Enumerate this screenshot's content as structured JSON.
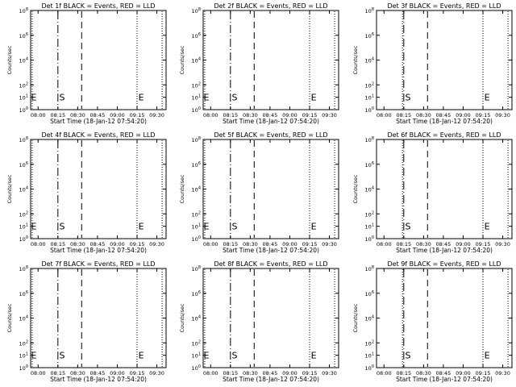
{
  "page": {
    "background": "#ffffff",
    "foreground": "#000000"
  },
  "chart_data": [
    {
      "type": "line",
      "detector": "Det 1f",
      "title": "Det 1f BLACK = Events, RED = LLD",
      "xlabel": "Start Time (18-Jan-12 07:54:20)",
      "ylabel": "Counts/sec",
      "x_tick_labels": [
        "08:00",
        "08:15",
        "08:30",
        "08:45",
        "09:00",
        "09:15",
        "09:30"
      ],
      "xlim": [
        "07:54:20",
        "09:37:00"
      ],
      "y_scale": "log",
      "ylim": [
        1,
        100000000
      ],
      "y_tick_labels": [
        {
          "base": "10",
          "exp": "8"
        },
        {
          "base": "10",
          "exp": "6"
        },
        {
          "base": "10",
          "exp": "4"
        },
        {
          "base": "10",
          "exp": "2"
        },
        {
          "base": "10",
          "exp": "1"
        },
        {
          "base": "10",
          "exp": "0"
        }
      ],
      "y_tick_values": [
        100000000,
        1000000,
        10000,
        100,
        10,
        1
      ],
      "series": [],
      "vertical_lines": [
        {
          "time": "07:55:30",
          "style": "dotted"
        },
        {
          "time": "08:15:00",
          "style": "dashdot"
        },
        {
          "time": "08:33:00",
          "style": "dashed"
        },
        {
          "time": "09:15:00",
          "style": "dotted"
        },
        {
          "time": "09:34:00",
          "style": "dotted"
        }
      ],
      "markers": [
        {
          "label": "E",
          "time": "07:54:40"
        },
        {
          "label": "S",
          "time": "08:16:00"
        },
        {
          "label": "E",
          "time": "09:16:00"
        }
      ],
      "grid": false
    },
    {
      "type": "line",
      "detector": "Det 2f",
      "title": "Det 2f BLACK = Events, RED = LLD",
      "xlabel": "Start Time (18-Jan-12 07:54:20)",
      "ylabel": "Counts/sec",
      "x_tick_labels": [
        "08:00",
        "08:15",
        "08:30",
        "08:45",
        "09:00",
        "09:15",
        "09:30"
      ],
      "xlim": [
        "07:54:20",
        "09:37:00"
      ],
      "y_scale": "log",
      "ylim": [
        1,
        100000000
      ],
      "y_tick_labels": [
        {
          "base": "10",
          "exp": "8"
        },
        {
          "base": "10",
          "exp": "6"
        },
        {
          "base": "10",
          "exp": "4"
        },
        {
          "base": "10",
          "exp": "2"
        },
        {
          "base": "10",
          "exp": "1"
        },
        {
          "base": "10",
          "exp": "0"
        }
      ],
      "y_tick_values": [
        100000000,
        1000000,
        10000,
        100,
        10,
        1
      ],
      "series": [],
      "vertical_lines": [
        {
          "time": "07:55:30",
          "style": "dotted"
        },
        {
          "time": "08:15:00",
          "style": "dashdot"
        },
        {
          "time": "08:33:00",
          "style": "dashed"
        },
        {
          "time": "09:15:00",
          "style": "dotted"
        },
        {
          "time": "09:34:00",
          "style": "dotted"
        }
      ],
      "markers": [
        {
          "label": "E",
          "time": "07:54:40"
        },
        {
          "label": "S",
          "time": "08:16:00"
        },
        {
          "label": "E",
          "time": "09:16:00"
        }
      ],
      "grid": false
    },
    {
      "type": "line",
      "detector": "Det 3f",
      "title": "Det 3f BLACK = Events, RED = LLD",
      "xlabel": "Start Time (18-Jan-12 07:54:20)",
      "ylabel": "Counts/sec",
      "x_tick_labels": [
        "08:00",
        "08:15",
        "08:30",
        "08:45",
        "09:00",
        "09:15",
        "09:30"
      ],
      "xlim": [
        "07:54:20",
        "09:37:00"
      ],
      "y_scale": "log",
      "ylim": [
        1,
        100000000
      ],
      "y_tick_labels": [
        {
          "base": "10",
          "exp": "8"
        },
        {
          "base": "10",
          "exp": "6"
        },
        {
          "base": "10",
          "exp": "4"
        },
        {
          "base": "10",
          "exp": "2"
        },
        {
          "base": "10",
          "exp": "1"
        },
        {
          "base": "10",
          "exp": "0"
        }
      ],
      "y_tick_values": [
        100000000,
        1000000,
        10000,
        100,
        10,
        1
      ],
      "series": [],
      "vertical_lines": [
        {
          "time": "08:14:00",
          "style": "dotted"
        },
        {
          "time": "08:15:00",
          "style": "dashdot"
        },
        {
          "time": "08:33:00",
          "style": "dashed"
        },
        {
          "time": "09:15:00",
          "style": "dotted"
        },
        {
          "time": "09:34:00",
          "style": "dotted"
        }
      ],
      "markers": [
        {
          "label": "S",
          "time": "08:16:00"
        },
        {
          "label": "E",
          "time": "09:16:00"
        }
      ],
      "grid": false
    },
    {
      "type": "line",
      "detector": "Det 4f",
      "title": "Det 4f BLACK = Events, RED = LLD",
      "xlabel": "Start Time (18-Jan-12 07:54:20)",
      "ylabel": "Counts/sec",
      "x_tick_labels": [
        "08:00",
        "08:15",
        "08:30",
        "08:45",
        "09:00",
        "09:15",
        "09:30"
      ],
      "xlim": [
        "07:54:20",
        "09:37:00"
      ],
      "y_scale": "log",
      "ylim": [
        1,
        100000000
      ],
      "y_tick_labels": [
        {
          "base": "10",
          "exp": "8"
        },
        {
          "base": "10",
          "exp": "6"
        },
        {
          "base": "10",
          "exp": "4"
        },
        {
          "base": "10",
          "exp": "2"
        },
        {
          "base": "10",
          "exp": "1"
        },
        {
          "base": "10",
          "exp": "0"
        }
      ],
      "y_tick_values": [
        100000000,
        1000000,
        10000,
        100,
        10,
        1
      ],
      "series": [],
      "vertical_lines": [
        {
          "time": "07:55:30",
          "style": "dotted"
        },
        {
          "time": "08:15:00",
          "style": "dashdot"
        },
        {
          "time": "08:33:00",
          "style": "dashed"
        },
        {
          "time": "09:15:00",
          "style": "dotted"
        },
        {
          "time": "09:34:00",
          "style": "dotted"
        }
      ],
      "markers": [
        {
          "label": "E",
          "time": "07:54:40"
        },
        {
          "label": "S",
          "time": "08:16:00"
        },
        {
          "label": "E",
          "time": "09:16:00"
        }
      ],
      "grid": false
    },
    {
      "type": "line",
      "detector": "Det 5f",
      "title": "Det 5f BLACK = Events, RED = LLD",
      "xlabel": "Start Time (18-Jan-12 07:54:20)",
      "ylabel": "Counts/sec",
      "x_tick_labels": [
        "08:00",
        "08:15",
        "08:30",
        "08:45",
        "09:00",
        "09:15",
        "09:30"
      ],
      "xlim": [
        "07:54:20",
        "09:37:00"
      ],
      "y_scale": "log",
      "ylim": [
        1,
        100000000
      ],
      "y_tick_labels": [
        {
          "base": "10",
          "exp": "8"
        },
        {
          "base": "10",
          "exp": "6"
        },
        {
          "base": "10",
          "exp": "4"
        },
        {
          "base": "10",
          "exp": "2"
        },
        {
          "base": "10",
          "exp": "1"
        },
        {
          "base": "10",
          "exp": "0"
        }
      ],
      "y_tick_values": [
        100000000,
        1000000,
        10000,
        100,
        10,
        1
      ],
      "series": [],
      "vertical_lines": [
        {
          "time": "07:55:30",
          "style": "dotted"
        },
        {
          "time": "08:15:00",
          "style": "dashdot"
        },
        {
          "time": "08:33:00",
          "style": "dashed"
        },
        {
          "time": "09:15:00",
          "style": "dotted"
        },
        {
          "time": "09:34:00",
          "style": "dotted"
        }
      ],
      "markers": [
        {
          "label": "E",
          "time": "07:54:40"
        },
        {
          "label": "S",
          "time": "08:16:00"
        },
        {
          "label": "E",
          "time": "09:16:00"
        }
      ],
      "grid": false
    },
    {
      "type": "line",
      "detector": "Det 6f",
      "title": "Det 6f BLACK = Events, RED = LLD",
      "xlabel": "Start Time (18-Jan-12 07:54:20)",
      "ylabel": "Counts/sec",
      "x_tick_labels": [
        "08:00",
        "08:15",
        "08:30",
        "08:45",
        "09:00",
        "09:15",
        "09:30"
      ],
      "xlim": [
        "07:54:20",
        "09:37:00"
      ],
      "y_scale": "log",
      "ylim": [
        1,
        100000000
      ],
      "y_tick_labels": [
        {
          "base": "10",
          "exp": "8"
        },
        {
          "base": "10",
          "exp": "6"
        },
        {
          "base": "10",
          "exp": "4"
        },
        {
          "base": "10",
          "exp": "2"
        },
        {
          "base": "10",
          "exp": "1"
        },
        {
          "base": "10",
          "exp": "0"
        }
      ],
      "y_tick_values": [
        100000000,
        1000000,
        10000,
        100,
        10,
        1
      ],
      "series": [],
      "vertical_lines": [
        {
          "time": "08:14:00",
          "style": "dotted"
        },
        {
          "time": "08:15:00",
          "style": "dashdot"
        },
        {
          "time": "08:33:00",
          "style": "dashed"
        },
        {
          "time": "09:15:00",
          "style": "dotted"
        },
        {
          "time": "09:34:00",
          "style": "dotted"
        }
      ],
      "markers": [
        {
          "label": "S",
          "time": "08:16:00"
        },
        {
          "label": "E",
          "time": "09:16:00"
        }
      ],
      "grid": false
    },
    {
      "type": "line",
      "detector": "Det 7f",
      "title": "Det 7f BLACK = Events, RED = LLD",
      "xlabel": "Start Time (18-Jan-12 07:54:20)",
      "ylabel": "Counts/sec",
      "x_tick_labels": [
        "08:00",
        "08:15",
        "08:30",
        "08:45",
        "09:00",
        "09:15",
        "09:30"
      ],
      "xlim": [
        "07:54:20",
        "09:37:00"
      ],
      "y_scale": "log",
      "ylim": [
        1,
        100000000
      ],
      "y_tick_labels": [
        {
          "base": "10",
          "exp": "8"
        },
        {
          "base": "10",
          "exp": "6"
        },
        {
          "base": "10",
          "exp": "4"
        },
        {
          "base": "10",
          "exp": "2"
        },
        {
          "base": "10",
          "exp": "1"
        },
        {
          "base": "10",
          "exp": "0"
        }
      ],
      "y_tick_values": [
        100000000,
        1000000,
        10000,
        100,
        10,
        1
      ],
      "series": [],
      "vertical_lines": [
        {
          "time": "07:55:30",
          "style": "dotted"
        },
        {
          "time": "08:15:00",
          "style": "dashdot"
        },
        {
          "time": "08:33:00",
          "style": "dashed"
        },
        {
          "time": "09:15:00",
          "style": "dotted"
        },
        {
          "time": "09:34:00",
          "style": "dotted"
        }
      ],
      "markers": [
        {
          "label": "E",
          "time": "07:54:40"
        },
        {
          "label": "S",
          "time": "08:16:00"
        },
        {
          "label": "E",
          "time": "09:16:00"
        }
      ],
      "grid": false
    },
    {
      "type": "line",
      "detector": "Det 8f",
      "title": "Det 8f BLACK = Events, RED = LLD",
      "xlabel": "Start Time (18-Jan-12 07:54:20)",
      "ylabel": "Counts/sec",
      "x_tick_labels": [
        "08:00",
        "08:15",
        "08:30",
        "08:45",
        "09:00",
        "09:15",
        "09:30"
      ],
      "xlim": [
        "07:54:20",
        "09:37:00"
      ],
      "y_scale": "log",
      "ylim": [
        1,
        100000000
      ],
      "y_tick_labels": [
        {
          "base": "10",
          "exp": "8"
        },
        {
          "base": "10",
          "exp": "6"
        },
        {
          "base": "10",
          "exp": "4"
        },
        {
          "base": "10",
          "exp": "2"
        },
        {
          "base": "10",
          "exp": "1"
        },
        {
          "base": "10",
          "exp": "0"
        }
      ],
      "y_tick_values": [
        100000000,
        1000000,
        10000,
        100,
        10,
        1
      ],
      "series": [],
      "vertical_lines": [
        {
          "time": "07:55:30",
          "style": "dotted"
        },
        {
          "time": "08:15:00",
          "style": "dashdot"
        },
        {
          "time": "08:33:00",
          "style": "dashed"
        },
        {
          "time": "09:15:00",
          "style": "dotted"
        },
        {
          "time": "09:34:00",
          "style": "dotted"
        }
      ],
      "markers": [
        {
          "label": "E",
          "time": "07:54:40"
        },
        {
          "label": "S",
          "time": "08:16:00"
        },
        {
          "label": "E",
          "time": "09:16:00"
        }
      ],
      "grid": false
    },
    {
      "type": "line",
      "detector": "Det 9f",
      "title": "Det 9f BLACK = Events, RED = LLD",
      "xlabel": "Start Time (18-Jan-12 07:54:20)",
      "ylabel": "Counts/sec",
      "x_tick_labels": [
        "08:00",
        "08:15",
        "08:30",
        "08:45",
        "09:00",
        "09:15",
        "09:30"
      ],
      "xlim": [
        "07:54:20",
        "09:37:00"
      ],
      "y_scale": "log",
      "ylim": [
        1,
        100000000
      ],
      "y_tick_labels": [
        {
          "base": "10",
          "exp": "8"
        },
        {
          "base": "10",
          "exp": "6"
        },
        {
          "base": "10",
          "exp": "4"
        },
        {
          "base": "10",
          "exp": "2"
        },
        {
          "base": "10",
          "exp": "1"
        },
        {
          "base": "10",
          "exp": "0"
        }
      ],
      "y_tick_values": [
        100000000,
        1000000,
        10000,
        100,
        10,
        1
      ],
      "series": [],
      "vertical_lines": [
        {
          "time": "08:14:00",
          "style": "dotted"
        },
        {
          "time": "08:15:00",
          "style": "dashdot"
        },
        {
          "time": "08:33:00",
          "style": "dashed"
        },
        {
          "time": "09:15:00",
          "style": "dotted"
        },
        {
          "time": "09:34:00",
          "style": "dotted"
        }
      ],
      "markers": [
        {
          "label": "S",
          "time": "08:16:00"
        },
        {
          "label": "E",
          "time": "09:16:00"
        }
      ],
      "grid": false
    }
  ]
}
